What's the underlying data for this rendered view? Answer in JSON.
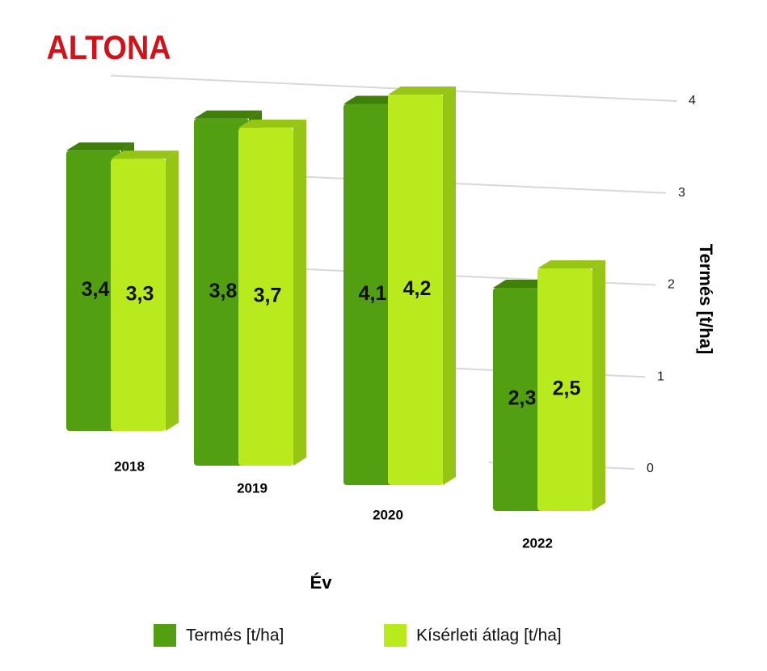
{
  "chart_data": {
    "type": "bar",
    "title": "ALTONA",
    "x_label": "Év",
    "y_label": "Termés  [t/ha]",
    "categories": [
      "2018",
      "2019",
      "2020",
      "2022"
    ],
    "series": [
      {
        "name": "Termés [t/ha]",
        "color": "#52a011",
        "values": [
          3.4,
          3.8,
          4.1,
          2.3
        ],
        "value_labels": [
          "3,4",
          "3,8",
          "4,1",
          "2,3"
        ]
      },
      {
        "name": "Kísérleti átlag [t/ha]",
        "color": "#b8ea1e",
        "values": [
          3.3,
          3.7,
          4.2,
          2.5
        ],
        "value_labels": [
          "3,3",
          "3,7",
          "4,2",
          "2,5"
        ]
      }
    ],
    "ylim": [
      0,
      4
    ],
    "yticks": [
      0,
      1,
      2,
      3,
      4
    ],
    "grid": true
  }
}
